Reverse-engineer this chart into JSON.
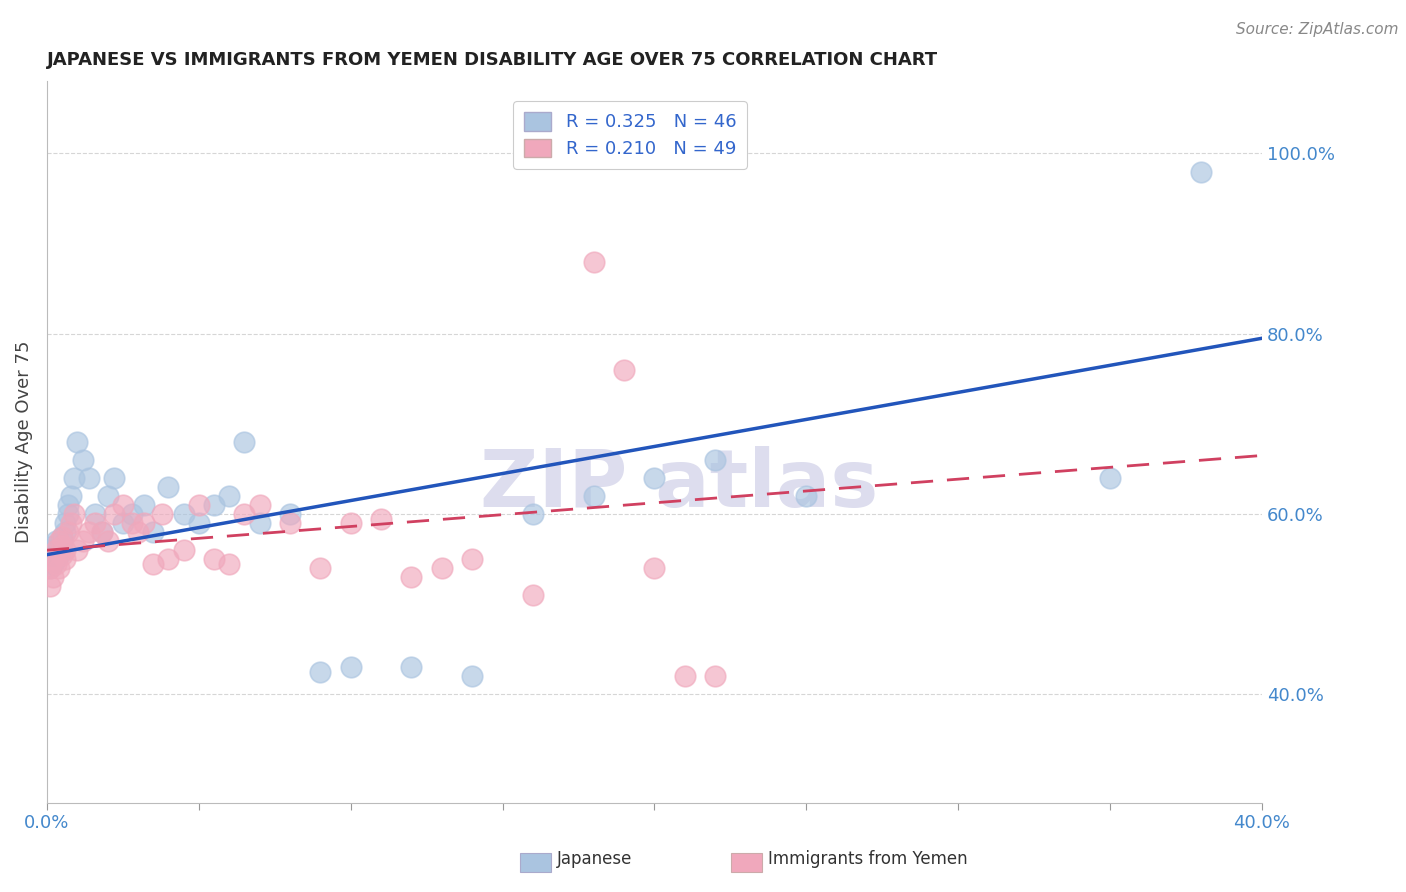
{
  "title": "JAPANESE VS IMMIGRANTS FROM YEMEN DISABILITY AGE OVER 75 CORRELATION CHART",
  "source": "Source: ZipAtlas.com",
  "ylabel": "Disability Age Over 75",
  "xlim": [
    0.0,
    0.4
  ],
  "ylim": [
    0.28,
    1.08
  ],
  "xticks": [
    0.0,
    0.05,
    0.1,
    0.15,
    0.2,
    0.25,
    0.3,
    0.35,
    0.4
  ],
  "yticks": [
    0.4,
    0.6,
    0.8,
    1.0
  ],
  "xtick_labels_show": [
    "0.0%",
    "",
    "",
    "",
    "",
    "",
    "",
    "",
    "40.0%"
  ],
  "ytick_labels": [
    "40.0%",
    "60.0%",
    "80.0%",
    "100.0%"
  ],
  "R_japanese": 0.325,
  "N_japanese": 46,
  "R_yemen": 0.21,
  "N_yemen": 49,
  "japanese_color": "#aac4e0",
  "yemen_color": "#f0a8bc",
  "trend_japanese_color": "#2255bb",
  "trend_yemen_color": "#d04060",
  "legend_japanese": "Japanese",
  "legend_yemen": "Immigrants from Yemen",
  "japanese_x": [
    0.001,
    0.001,
    0.002,
    0.002,
    0.003,
    0.003,
    0.004,
    0.004,
    0.005,
    0.005,
    0.006,
    0.006,
    0.007,
    0.007,
    0.008,
    0.009,
    0.01,
    0.012,
    0.014,
    0.016,
    0.018,
    0.02,
    0.022,
    0.025,
    0.028,
    0.032,
    0.035,
    0.04,
    0.045,
    0.05,
    0.055,
    0.06,
    0.065,
    0.07,
    0.08,
    0.09,
    0.1,
    0.12,
    0.14,
    0.16,
    0.18,
    0.2,
    0.22,
    0.25,
    0.35,
    0.38
  ],
  "japanese_y": [
    0.54,
    0.56,
    0.545,
    0.565,
    0.55,
    0.57,
    0.555,
    0.56,
    0.57,
    0.575,
    0.58,
    0.59,
    0.6,
    0.61,
    0.62,
    0.64,
    0.68,
    0.66,
    0.64,
    0.6,
    0.58,
    0.62,
    0.64,
    0.59,
    0.6,
    0.61,
    0.58,
    0.63,
    0.6,
    0.59,
    0.61,
    0.62,
    0.68,
    0.59,
    0.6,
    0.425,
    0.43,
    0.43,
    0.42,
    0.6,
    0.62,
    0.64,
    0.66,
    0.62,
    0.64,
    0.98
  ],
  "yemen_x": [
    0.001,
    0.001,
    0.002,
    0.002,
    0.003,
    0.003,
    0.004,
    0.004,
    0.005,
    0.005,
    0.005,
    0.006,
    0.006,
    0.007,
    0.008,
    0.009,
    0.01,
    0.012,
    0.014,
    0.016,
    0.018,
    0.02,
    0.022,
    0.025,
    0.028,
    0.03,
    0.032,
    0.035,
    0.038,
    0.04,
    0.045,
    0.05,
    0.055,
    0.06,
    0.065,
    0.07,
    0.08,
    0.09,
    0.1,
    0.11,
    0.12,
    0.13,
    0.14,
    0.16,
    0.18,
    0.19,
    0.2,
    0.21,
    0.22
  ],
  "yemen_y": [
    0.54,
    0.52,
    0.53,
    0.55,
    0.545,
    0.56,
    0.57,
    0.54,
    0.555,
    0.565,
    0.575,
    0.55,
    0.56,
    0.58,
    0.59,
    0.6,
    0.56,
    0.57,
    0.58,
    0.59,
    0.58,
    0.57,
    0.6,
    0.61,
    0.59,
    0.58,
    0.59,
    0.545,
    0.6,
    0.55,
    0.56,
    0.61,
    0.55,
    0.545,
    0.6,
    0.61,
    0.59,
    0.54,
    0.59,
    0.595,
    0.53,
    0.54,
    0.55,
    0.51,
    0.88,
    0.76,
    0.54,
    0.42,
    0.42
  ],
  "background_color": "#ffffff",
  "grid_color": "#cccccc",
  "tick_color": "#4488cc",
  "title_color": "#222222",
  "source_color": "#888888",
  "label_color": "#444444",
  "watermark_color": "#ddddee",
  "trend_j_x0": 0.0,
  "trend_j_y0": 0.555,
  "trend_j_x1": 0.4,
  "trend_j_y1": 0.795,
  "trend_y_x0": 0.0,
  "trend_y_y0": 0.56,
  "trend_y_x1": 0.4,
  "trend_y_y1": 0.665
}
